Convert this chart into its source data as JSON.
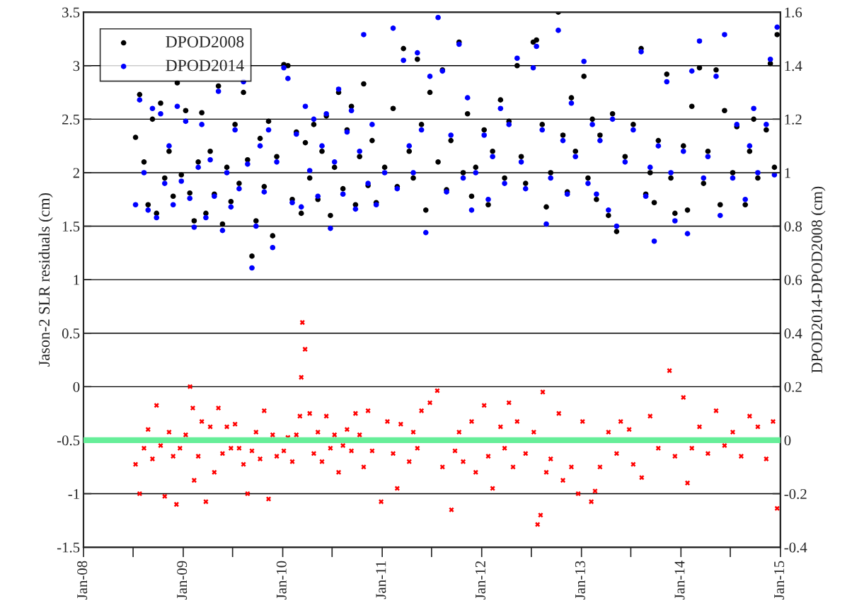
{
  "chart_data": {
    "type": "scatter",
    "xlabel": null,
    "ylabel": "Jason-2 SLR residuals (cm)",
    "y2label": "DPOD2014-DPOD2008 (cm)",
    "xlim": [
      "2008-01-01",
      "2015-01-01"
    ],
    "xticks": [
      {
        "value": "2008-01-01",
        "label": "Jan-08"
      },
      {
        "value": "2008-07-01",
        "label": null
      },
      {
        "value": "2009-01-01",
        "label": "Jan-09"
      },
      {
        "value": "2009-07-01",
        "label": null
      },
      {
        "value": "2010-01-01",
        "label": "Jan-10"
      },
      {
        "value": "2010-07-01",
        "label": null
      },
      {
        "value": "2011-01-01",
        "label": "Jan-11"
      },
      {
        "value": "2011-07-01",
        "label": null
      },
      {
        "value": "2012-01-01",
        "label": "Jan-12"
      },
      {
        "value": "2012-07-01",
        "label": null
      },
      {
        "value": "2013-01-01",
        "label": "Jan-13"
      },
      {
        "value": "2013-07-01",
        "label": null
      },
      {
        "value": "2014-01-01",
        "label": "Jan-14"
      },
      {
        "value": "2014-07-01",
        "label": null
      },
      {
        "value": "2015-01-01",
        "label": "Jan-15"
      }
    ],
    "ylim": [
      -1.5,
      3.5
    ],
    "yticks": [
      -1.5,
      -1,
      -0.5,
      0,
      0.5,
      1,
      1.5,
      2,
      2.5,
      3,
      3.5
    ],
    "y2lim": [
      -0.4,
      1.6
    ],
    "y2ticks": [
      -0.4,
      -0.2,
      0,
      0.2,
      0.4,
      0.6,
      0.8,
      1,
      1.2,
      1.4,
      1.6
    ],
    "grid": "y",
    "legend": "top left",
    "ref_lines": [
      {
        "axis": "y2",
        "value": 0,
        "color": "#66ee99"
      }
    ],
    "series": [
      {
        "name": "DPOD2008",
        "color": "#000000",
        "marker": "circle",
        "x": [
          "2008-07-10",
          "2008-07-25",
          "2008-08-10",
          "2008-08-25",
          "2008-09-10",
          "2008-09-25",
          "2008-10-10",
          "2008-10-25",
          "2008-11-10",
          "2008-11-25",
          "2008-12-10",
          "2008-12-25",
          "2009-01-10",
          "2009-01-25",
          "2009-02-10",
          "2009-02-25",
          "2009-03-10",
          "2009-03-25",
          "2009-04-10",
          "2009-04-25",
          "2009-05-10",
          "2009-05-25",
          "2009-06-10",
          "2009-06-25",
          "2009-07-10",
          "2009-07-25",
          "2009-08-10",
          "2009-08-25",
          "2009-09-10",
          "2009-09-25",
          "2009-10-10",
          "2009-10-25",
          "2009-11-10",
          "2009-11-25",
          "2009-12-10",
          "2010-01-05",
          "2010-01-20",
          "2010-02-05",
          "2010-02-20",
          "2010-03-10",
          "2010-03-25",
          "2010-04-10",
          "2010-04-25",
          "2010-05-10",
          "2010-05-25",
          "2010-06-10",
          "2010-06-25",
          "2010-07-10",
          "2010-07-25",
          "2010-08-10",
          "2010-08-25",
          "2010-09-10",
          "2010-09-25",
          "2010-10-10",
          "2010-10-25",
          "2010-11-10",
          "2010-11-25",
          "2010-12-10",
          "2011-01-10",
          "2011-02-10",
          "2011-02-25",
          "2011-03-20",
          "2011-04-10",
          "2011-04-25",
          "2011-05-10",
          "2011-05-25",
          "2011-06-10",
          "2011-06-25",
          "2011-07-25",
          "2011-08-10",
          "2011-08-25",
          "2011-09-10",
          "2011-10-10",
          "2011-10-25",
          "2011-11-10",
          "2011-11-25",
          "2011-12-10",
          "2012-01-10",
          "2012-01-25",
          "2012-02-10",
          "2012-03-10",
          "2012-03-25",
          "2012-04-10",
          "2012-05-10",
          "2012-05-25",
          "2012-06-10",
          "2012-07-08",
          "2012-07-20",
          "2012-08-10",
          "2012-08-25",
          "2012-09-10",
          "2012-10-08",
          "2012-10-25",
          "2012-11-10",
          "2012-11-25",
          "2012-12-10",
          "2013-01-10",
          "2013-01-25",
          "2013-02-10",
          "2013-02-25",
          "2013-03-10",
          "2013-04-10",
          "2013-04-25",
          "2013-05-10",
          "2013-06-10",
          "2013-07-10",
          "2013-08-08",
          "2013-08-25",
          "2013-09-10",
          "2013-09-25",
          "2013-10-10",
          "2013-11-10",
          "2013-11-25",
          "2013-12-10",
          "2014-01-10",
          "2014-01-25",
          "2014-02-10",
          "2014-03-10",
          "2014-03-25",
          "2014-04-10",
          "2014-05-10",
          "2014-05-25",
          "2014-06-10",
          "2014-07-10",
          "2014-07-25",
          "2014-08-25",
          "2014-09-10",
          "2014-09-25",
          "2014-10-10",
          "2014-11-10",
          "2014-11-25",
          "2014-12-10",
          "2014-12-20"
        ],
        "values": [
          2.33,
          2.73,
          2.1,
          1.7,
          2.5,
          1.62,
          2.65,
          1.95,
          2.2,
          1.78,
          2.84,
          1.98,
          2.58,
          1.81,
          1.55,
          2.1,
          2.56,
          1.62,
          2.2,
          1.8,
          2.81,
          1.52,
          2.05,
          1.73,
          2.45,
          1.9,
          2.75,
          2.12,
          1.22,
          1.55,
          2.32,
          1.87,
          2.48,
          1.41,
          2.15,
          3.01,
          3.0,
          1.75,
          2.38,
          1.62,
          2.28,
          1.95,
          2.45,
          1.75,
          2.2,
          2.53,
          1.6,
          2.05,
          2.75,
          1.85,
          2.4,
          2.62,
          1.7,
          2.15,
          2.83,
          1.88,
          2.3,
          1.72,
          2.05,
          2.6,
          1.87,
          3.16,
          2.2,
          1.95,
          3.06,
          2.45,
          1.65,
          2.75,
          2.1,
          2.96,
          1.84,
          2.3,
          3.22,
          2.0,
          2.55,
          1.78,
          2.05,
          2.4,
          1.7,
          2.2,
          2.68,
          1.95,
          2.48,
          3.0,
          2.15,
          1.9,
          3.22,
          3.24,
          2.45,
          1.68,
          2.0,
          3.5,
          2.35,
          1.82,
          2.7,
          2.2,
          2.9,
          1.95,
          2.5,
          1.75,
          2.35,
          1.6,
          2.55,
          1.45,
          2.15,
          2.45,
          3.16,
          1.8,
          2.0,
          1.72,
          2.3,
          2.92,
          1.95,
          1.62,
          2.25,
          1.65,
          2.62,
          2.98,
          1.9,
          2.2,
          2.96,
          1.7,
          2.58,
          2.0,
          2.43,
          1.7,
          2.2,
          2.5,
          1.95,
          2.4,
          3.02,
          2.05,
          3.29
        ]
      },
      {
        "name": "DPOD2014",
        "color": "#0000ff",
        "marker": "circle",
        "x": [
          "2008-07-10",
          "2008-07-25",
          "2008-08-10",
          "2008-08-25",
          "2008-09-10",
          "2008-09-25",
          "2008-10-10",
          "2008-10-25",
          "2008-11-10",
          "2008-11-25",
          "2008-12-10",
          "2008-12-25",
          "2009-01-10",
          "2009-01-25",
          "2009-02-10",
          "2009-02-25",
          "2009-03-10",
          "2009-03-25",
          "2009-04-10",
          "2009-04-25",
          "2009-05-10",
          "2009-05-25",
          "2009-06-10",
          "2009-06-25",
          "2009-07-10",
          "2009-07-25",
          "2009-08-10",
          "2009-08-25",
          "2009-09-10",
          "2009-09-25",
          "2009-10-10",
          "2009-10-25",
          "2009-11-10",
          "2009-11-25",
          "2009-12-10",
          "2010-01-05",
          "2010-01-20",
          "2010-02-05",
          "2010-02-20",
          "2010-03-10",
          "2010-03-25",
          "2010-04-10",
          "2010-04-25",
          "2010-05-10",
          "2010-05-25",
          "2010-06-10",
          "2010-06-25",
          "2010-07-10",
          "2010-07-25",
          "2010-08-10",
          "2010-08-25",
          "2010-09-10",
          "2010-09-25",
          "2010-10-10",
          "2010-10-25",
          "2010-11-10",
          "2010-11-25",
          "2010-12-10",
          "2011-01-10",
          "2011-02-10",
          "2011-02-25",
          "2011-03-20",
          "2011-04-10",
          "2011-04-25",
          "2011-05-10",
          "2011-05-25",
          "2011-06-10",
          "2011-06-25",
          "2011-07-25",
          "2011-08-10",
          "2011-08-25",
          "2011-09-10",
          "2011-10-10",
          "2011-10-25",
          "2011-11-10",
          "2011-11-25",
          "2011-12-10",
          "2012-01-10",
          "2012-01-25",
          "2012-02-10",
          "2012-03-10",
          "2012-03-25",
          "2012-04-10",
          "2012-05-10",
          "2012-05-25",
          "2012-06-10",
          "2012-07-08",
          "2012-07-20",
          "2012-08-10",
          "2012-08-25",
          "2012-09-10",
          "2012-10-08",
          "2012-10-25",
          "2012-11-10",
          "2012-11-25",
          "2012-12-10",
          "2013-01-10",
          "2013-01-25",
          "2013-02-10",
          "2013-02-25",
          "2013-03-10",
          "2013-04-10",
          "2013-04-25",
          "2013-05-10",
          "2013-06-10",
          "2013-07-10",
          "2013-08-08",
          "2013-08-25",
          "2013-09-10",
          "2013-09-25",
          "2013-10-10",
          "2013-11-10",
          "2013-11-25",
          "2013-12-10",
          "2014-01-10",
          "2014-01-25",
          "2014-02-10",
          "2014-03-10",
          "2014-03-25",
          "2014-04-10",
          "2014-05-10",
          "2014-05-25",
          "2014-06-10",
          "2014-07-10",
          "2014-07-25",
          "2014-08-25",
          "2014-09-10",
          "2014-09-25",
          "2014-10-10",
          "2014-11-10",
          "2014-11-25",
          "2014-12-10",
          "2014-12-20"
        ],
        "values": [
          1.7,
          2.68,
          2.0,
          1.65,
          2.6,
          1.58,
          2.55,
          1.9,
          2.25,
          1.7,
          2.62,
          1.92,
          2.48,
          1.76,
          1.49,
          2.05,
          2.45,
          1.58,
          2.12,
          1.78,
          2.76,
          1.46,
          2.0,
          1.68,
          2.4,
          1.85,
          2.85,
          2.08,
          1.11,
          1.5,
          2.25,
          1.82,
          2.4,
          1.3,
          2.1,
          2.98,
          2.88,
          1.72,
          2.36,
          1.68,
          2.62,
          2.02,
          2.5,
          1.78,
          2.25,
          2.55,
          1.48,
          2.1,
          2.78,
          1.8,
          2.38,
          2.58,
          1.66,
          2.2,
          3.29,
          1.9,
          2.45,
          1.7,
          2.0,
          3.35,
          1.85,
          3.05,
          2.25,
          2.0,
          3.12,
          2.4,
          1.44,
          2.9,
          3.45,
          2.95,
          1.82,
          2.35,
          3.2,
          1.95,
          2.7,
          1.65,
          2.0,
          2.35,
          1.75,
          2.15,
          2.6,
          1.9,
          2.45,
          3.07,
          2.1,
          1.85,
          2.98,
          3.18,
          2.4,
          1.52,
          1.95,
          3.33,
          2.3,
          1.8,
          2.65,
          2.15,
          3.04,
          1.9,
          2.45,
          1.8,
          2.3,
          1.65,
          2.5,
          1.5,
          2.1,
          2.4,
          3.13,
          1.78,
          2.05,
          1.36,
          2.25,
          2.85,
          2.0,
          1.55,
          2.2,
          1.43,
          2.95,
          3.23,
          1.95,
          2.15,
          2.9,
          1.6,
          3.29,
          1.95,
          2.45,
          1.75,
          2.25,
          2.6,
          2.0,
          2.45,
          3.06,
          1.98,
          3.36
        ]
      },
      {
        "color": "#ff0000",
        "marker": "cross",
        "axis": "y2",
        "x": [
          "2008-07-10",
          "2008-07-25",
          "2008-08-10",
          "2008-08-25",
          "2008-09-10",
          "2008-09-25",
          "2008-10-10",
          "2008-10-25",
          "2008-11-10",
          "2008-11-25",
          "2008-12-07",
          "2008-12-20",
          "2009-01-10",
          "2009-01-26",
          "2009-02-05",
          "2009-02-10",
          "2009-02-25",
          "2009-03-10",
          "2009-03-25",
          "2009-04-10",
          "2009-04-25",
          "2009-05-10",
          "2009-05-25",
          "2009-06-10",
          "2009-06-25",
          "2009-07-10",
          "2009-07-25",
          "2009-08-10",
          "2009-08-25",
          "2009-09-10",
          "2009-09-25",
          "2009-10-10",
          "2009-10-25",
          "2009-11-10",
          "2009-11-25",
          "2009-12-10",
          "2010-01-05",
          "2010-01-20",
          "2010-02-05",
          "2010-02-20",
          "2010-03-05",
          "2010-03-10",
          "2010-03-14",
          "2010-03-24",
          "2010-04-10",
          "2010-04-25",
          "2010-05-10",
          "2010-05-25",
          "2010-06-10",
          "2010-06-25",
          "2010-07-10",
          "2010-07-25",
          "2010-08-10",
          "2010-08-25",
          "2010-09-10",
          "2010-09-25",
          "2010-10-10",
          "2010-10-25",
          "2010-11-10",
          "2010-11-25",
          "2010-12-28",
          "2011-01-20",
          "2011-02-10",
          "2011-02-25",
          "2011-03-10",
          "2011-04-10",
          "2011-04-25",
          "2011-05-10",
          "2011-05-25",
          "2011-06-25",
          "2011-07-22",
          "2011-08-10",
          "2011-09-12",
          "2011-09-25",
          "2011-10-10",
          "2011-10-25",
          "2011-11-25",
          "2011-12-10",
          "2012-01-10",
          "2012-01-25",
          "2012-02-10",
          "2012-03-10",
          "2012-03-25",
          "2012-04-10",
          "2012-04-25",
          "2012-05-10",
          "2012-06-10",
          "2012-07-10",
          "2012-07-24",
          "2012-08-04",
          "2012-08-12",
          "2012-08-25",
          "2012-09-10",
          "2012-10-10",
          "2012-10-25",
          "2012-11-25",
          "2012-12-20",
          "2013-01-05",
          "2013-02-06",
          "2013-02-20",
          "2013-03-10",
          "2013-04-10",
          "2013-05-10",
          "2013-05-25",
          "2013-06-25",
          "2013-07-10",
          "2013-08-10",
          "2013-09-10",
          "2013-10-10",
          "2013-11-20",
          "2013-12-10",
          "2014-01-10",
          "2014-01-25",
          "2014-02-10",
          "2014-03-10",
          "2014-04-10",
          "2014-05-10",
          "2014-06-10",
          "2014-07-10",
          "2014-08-10",
          "2014-09-10",
          "2014-10-10",
          "2014-11-10",
          "2014-12-05",
          "2014-12-20"
        ],
        "values": [
          -0.09,
          -0.2,
          -0.03,
          0.04,
          -0.07,
          0.13,
          -0.02,
          -0.21,
          0.03,
          -0.06,
          -0.24,
          -0.03,
          0.02,
          0.2,
          0.12,
          -0.15,
          -0.06,
          0.07,
          -0.23,
          0.05,
          -0.12,
          0.12,
          -0.05,
          0.05,
          -0.03,
          0.06,
          -0.03,
          -0.09,
          -0.2,
          -0.04,
          0.03,
          -0.07,
          0.11,
          -0.22,
          0.02,
          -0.06,
          -0.04,
          0.01,
          -0.08,
          0.02,
          0.09,
          0.235,
          0.44,
          0.34,
          0.1,
          -0.05,
          0.03,
          -0.08,
          0.09,
          -0.03,
          0.02,
          -0.12,
          -0.02,
          0.04,
          -0.04,
          0.1,
          0.02,
          -0.1,
          0.11,
          -0.04,
          -0.23,
          0.07,
          -0.05,
          -0.18,
          0.06,
          -0.08,
          0.03,
          -0.03,
          0.11,
          0.14,
          0.185,
          -0.1,
          -0.26,
          -0.04,
          0.03,
          -0.08,
          0.07,
          -0.12,
          0.13,
          -0.06,
          -0.18,
          0.05,
          -0.03,
          0.14,
          -0.1,
          0.07,
          -0.05,
          0.03,
          -0.315,
          -0.28,
          0.18,
          -0.12,
          -0.07,
          0.1,
          -0.15,
          -0.1,
          -0.2,
          0.07,
          -0.23,
          -0.19,
          -0.1,
          0.03,
          -0.05,
          0.07,
          0.04,
          -0.09,
          -0.14,
          0.09,
          -0.03,
          0.26,
          -0.06,
          0.16,
          -0.16,
          -0.03,
          0.05,
          -0.05,
          0.11,
          -0.02,
          0.03,
          -0.06,
          0.09,
          0.05,
          -0.07,
          0.07,
          -0.255
        ]
      }
    ]
  }
}
